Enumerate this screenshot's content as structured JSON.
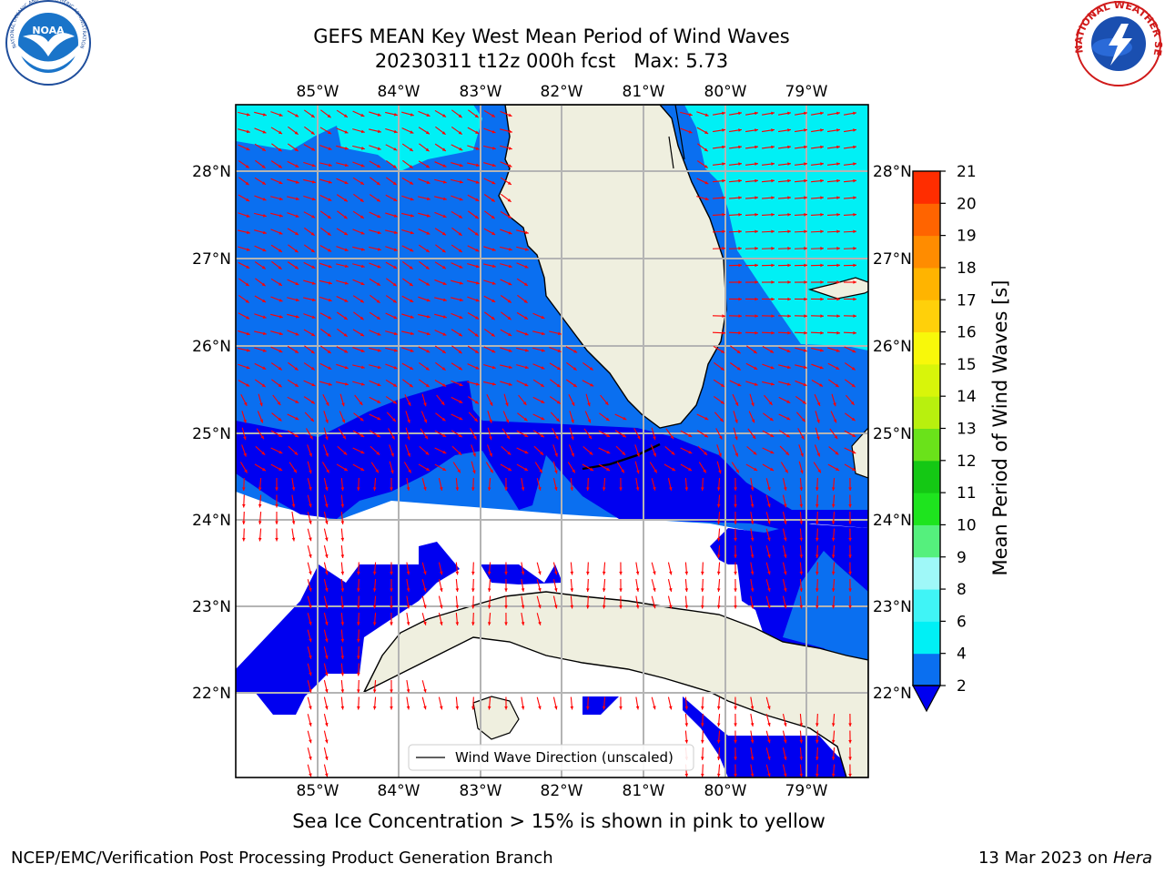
{
  "header": {
    "title_line1": "GEFS MEAN Key West Mean Period of Wind Waves",
    "title_line2": "20230311 t12z 000h fcst   Max: 5.73"
  },
  "logos": {
    "noaa_text": "NOAA",
    "noaa_ring_text": "NATIONAL OCEANIC AND ATMOSPHERIC ADMINISTRATION · U.S. DEPARTMENT OF COMMERCE",
    "nws_ring_text": "NATIONAL WEATHER SERVICE"
  },
  "map": {
    "lon_labels": [
      "85°W",
      "84°W",
      "83°W",
      "82°W",
      "81°W",
      "80°W",
      "79°W"
    ],
    "lat_labels": [
      "28°N",
      "27°N",
      "26°N",
      "25°N",
      "24°N",
      "23°N",
      "22°N"
    ],
    "legend_label": "Wind Wave Direction (unscaled)",
    "colors": {
      "ocean_2_4": "#0a6ff0",
      "ocean_lt2": "#0000f0",
      "ocean_4_6": "#00f0f5",
      "land": "#efefdf",
      "arrow": "#ff0000",
      "grid": "#b4b4b4"
    }
  },
  "colorbar": {
    "label": "Mean Period of Wind Waves [s]",
    "ticks": [
      "2",
      "4",
      "6",
      "8",
      "9",
      "10",
      "11",
      "12",
      "13",
      "14",
      "15",
      "16",
      "17",
      "18",
      "19",
      "20",
      "21"
    ],
    "colors": [
      "#0a6ff0",
      "#00f0f5",
      "#40f4f6",
      "#9ff8f8",
      "#55f07d",
      "#1ee41e",
      "#14c814",
      "#6ae21a",
      "#b8f00e",
      "#d8f50a",
      "#f8f80a",
      "#ffd00a",
      "#ffb400",
      "#ff8c00",
      "#ff6400",
      "#ff2d00"
    ]
  },
  "subtitle": "Sea Ice Concentration > 15% is shown in pink to yellow",
  "footer": {
    "left": "NCEP/EMC/Verification Post Processing Product Generation Branch",
    "date": "13 Mar 2023 on ",
    "host": "Hera"
  }
}
